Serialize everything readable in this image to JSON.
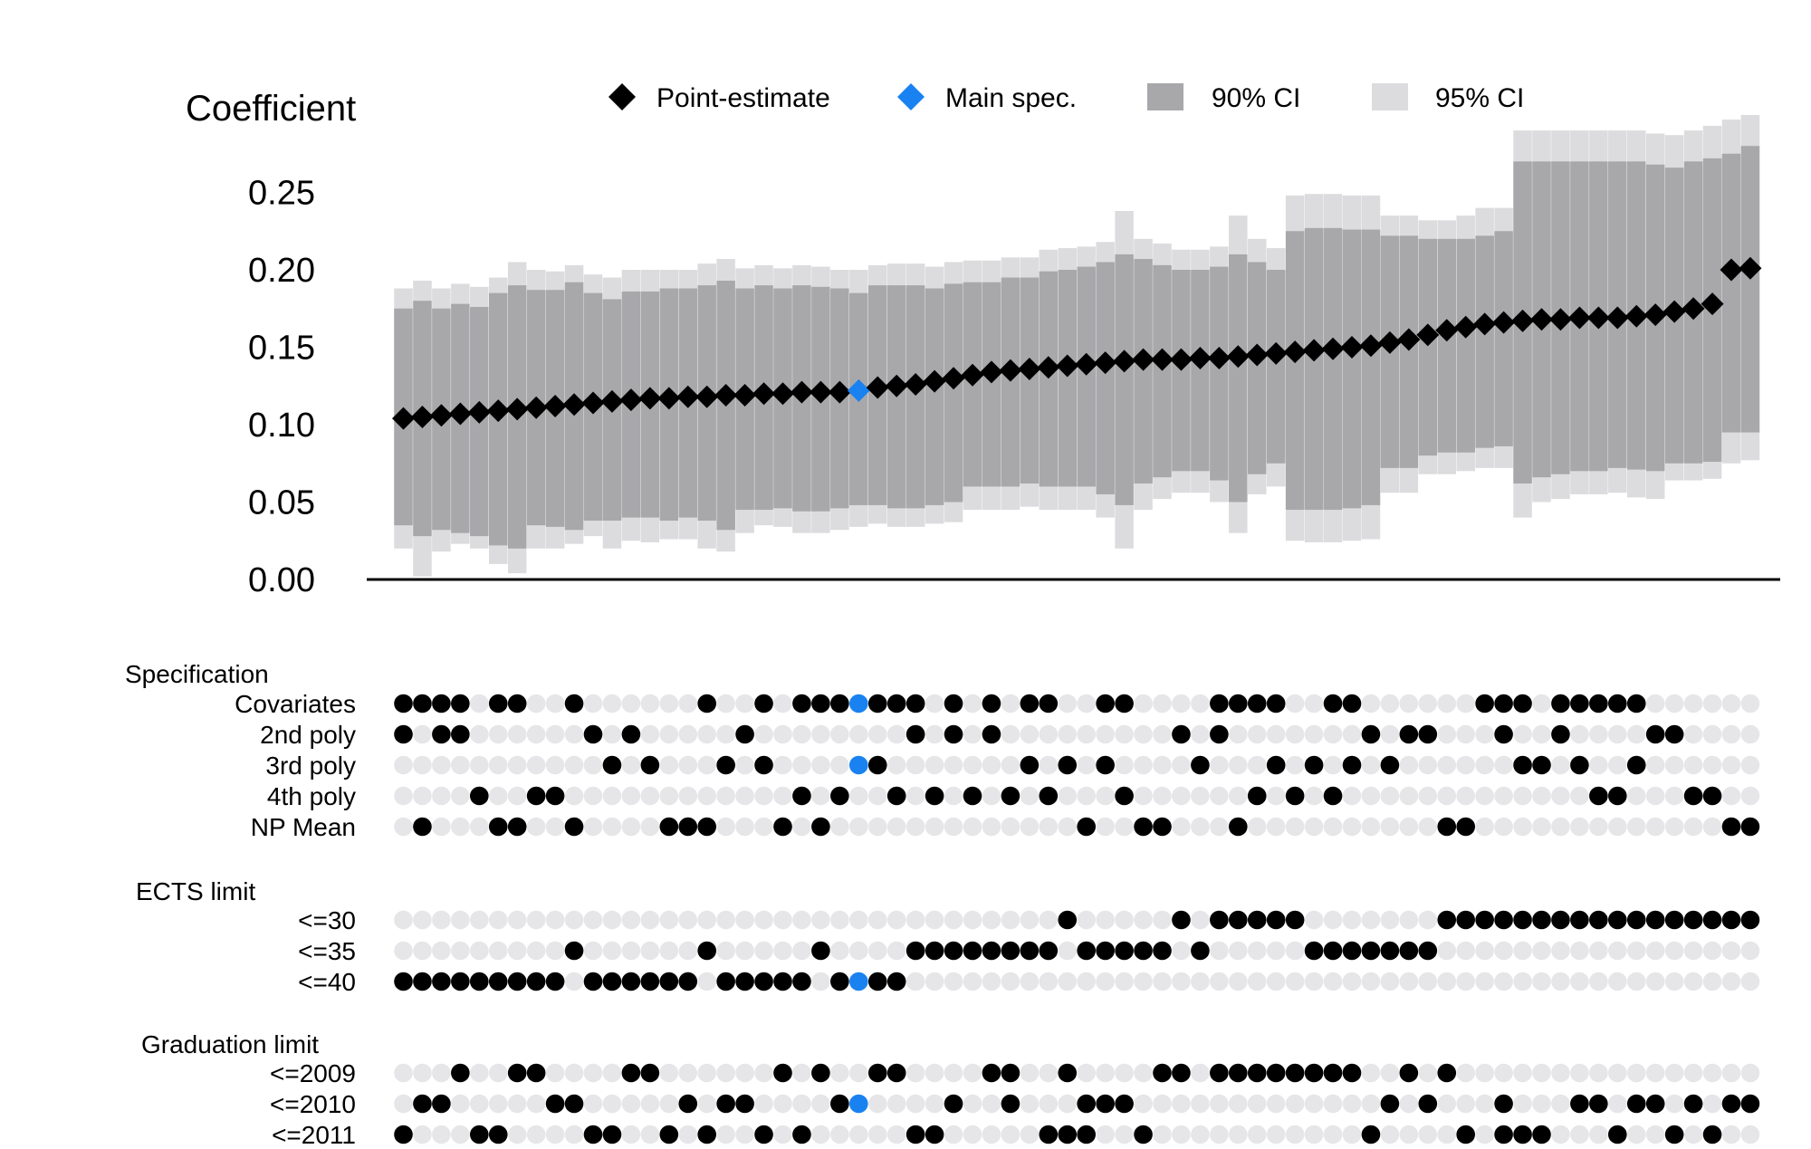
{
  "chart_data": {
    "type": "specification-curve",
    "ylabel": "Coefficient",
    "yticks": [
      "0.00",
      "0.05",
      "0.10",
      "0.15",
      "0.20",
      "0.25"
    ],
    "ylim": [
      0,
      0.28
    ],
    "legend": {
      "placement": "top",
      "items": [
        {
          "label": "Point-estimate",
          "shape": "diamond",
          "color": "#000000"
        },
        {
          "label": "Main spec.",
          "shape": "diamond",
          "color": "#1a82f0"
        },
        {
          "label": "90% CI",
          "shape": "square",
          "color": "#a8a8ab"
        },
        {
          "label": "95% CI",
          "shape": "square",
          "color": "#dcdcde"
        }
      ]
    },
    "main_spec_index": 24,
    "n_specs": 72,
    "estimates": [
      0.104,
      0.105,
      0.106,
      0.107,
      0.108,
      0.109,
      0.11,
      0.111,
      0.112,
      0.113,
      0.114,
      0.115,
      0.116,
      0.117,
      0.117,
      0.118,
      0.118,
      0.119,
      0.119,
      0.12,
      0.12,
      0.121,
      0.121,
      0.121,
      0.122,
      0.124,
      0.125,
      0.126,
      0.128,
      0.13,
      0.132,
      0.134,
      0.135,
      0.136,
      0.137,
      0.138,
      0.139,
      0.14,
      0.141,
      0.142,
      0.142,
      0.142,
      0.143,
      0.143,
      0.144,
      0.145,
      0.146,
      0.147,
      0.148,
      0.149,
      0.15,
      0.151,
      0.153,
      0.155,
      0.158,
      0.161,
      0.163,
      0.165,
      0.166,
      0.167,
      0.168,
      0.168,
      0.169,
      0.169,
      0.169,
      0.17,
      0.171,
      0.173,
      0.175,
      0.178,
      0.2,
      0.201
    ],
    "ci90": [
      [
        0.035,
        0.175
      ],
      [
        0.028,
        0.18
      ],
      [
        0.032,
        0.175
      ],
      [
        0.03,
        0.178
      ],
      [
        0.028,
        0.176
      ],
      [
        0.022,
        0.185
      ],
      [
        0.02,
        0.19
      ],
      [
        0.035,
        0.187
      ],
      [
        0.034,
        0.187
      ],
      [
        0.032,
        0.192
      ],
      [
        0.038,
        0.185
      ],
      [
        0.038,
        0.181
      ],
      [
        0.04,
        0.186
      ],
      [
        0.04,
        0.186
      ],
      [
        0.038,
        0.188
      ],
      [
        0.04,
        0.188
      ],
      [
        0.038,
        0.19
      ],
      [
        0.032,
        0.193
      ],
      [
        0.045,
        0.188
      ],
      [
        0.045,
        0.19
      ],
      [
        0.046,
        0.188
      ],
      [
        0.044,
        0.19
      ],
      [
        0.044,
        0.189
      ],
      [
        0.046,
        0.188
      ],
      [
        0.048,
        0.185
      ],
      [
        0.048,
        0.19
      ],
      [
        0.046,
        0.19
      ],
      [
        0.046,
        0.19
      ],
      [
        0.048,
        0.188
      ],
      [
        0.05,
        0.191
      ],
      [
        0.06,
        0.192
      ],
      [
        0.06,
        0.192
      ],
      [
        0.06,
        0.195
      ],
      [
        0.062,
        0.195
      ],
      [
        0.06,
        0.199
      ],
      [
        0.06,
        0.2
      ],
      [
        0.06,
        0.202
      ],
      [
        0.055,
        0.205
      ],
      [
        0.048,
        0.21
      ],
      [
        0.062,
        0.207
      ],
      [
        0.066,
        0.203
      ],
      [
        0.07,
        0.2
      ],
      [
        0.07,
        0.2
      ],
      [
        0.064,
        0.202
      ],
      [
        0.05,
        0.21
      ],
      [
        0.068,
        0.205
      ],
      [
        0.075,
        0.2
      ],
      [
        0.045,
        0.225
      ],
      [
        0.045,
        0.227
      ],
      [
        0.045,
        0.227
      ],
      [
        0.046,
        0.226
      ],
      [
        0.048,
        0.226
      ],
      [
        0.072,
        0.222
      ],
      [
        0.072,
        0.222
      ],
      [
        0.08,
        0.22
      ],
      [
        0.082,
        0.22
      ],
      [
        0.082,
        0.22
      ],
      [
        0.085,
        0.222
      ],
      [
        0.086,
        0.225
      ],
      [
        0.062,
        0.27
      ],
      [
        0.066,
        0.27
      ],
      [
        0.068,
        0.27
      ],
      [
        0.07,
        0.27
      ],
      [
        0.07,
        0.27
      ],
      [
        0.072,
        0.27
      ],
      [
        0.071,
        0.27
      ],
      [
        0.07,
        0.268
      ],
      [
        0.075,
        0.266
      ],
      [
        0.075,
        0.27
      ],
      [
        0.076,
        0.272
      ],
      [
        0.095,
        0.275
      ],
      [
        0.095,
        0.28
      ]
    ],
    "ci95": [
      [
        0.02,
        0.188
      ],
      [
        0.002,
        0.193
      ],
      [
        0.018,
        0.188
      ],
      [
        0.023,
        0.191
      ],
      [
        0.02,
        0.189
      ],
      [
        0.01,
        0.195
      ],
      [
        0.004,
        0.205
      ],
      [
        0.02,
        0.2
      ],
      [
        0.02,
        0.199
      ],
      [
        0.023,
        0.203
      ],
      [
        0.028,
        0.197
      ],
      [
        0.02,
        0.195
      ],
      [
        0.025,
        0.2
      ],
      [
        0.024,
        0.2
      ],
      [
        0.026,
        0.2
      ],
      [
        0.026,
        0.2
      ],
      [
        0.02,
        0.204
      ],
      [
        0.018,
        0.207
      ],
      [
        0.03,
        0.201
      ],
      [
        0.035,
        0.203
      ],
      [
        0.034,
        0.201
      ],
      [
        0.03,
        0.203
      ],
      [
        0.03,
        0.202
      ],
      [
        0.032,
        0.2
      ],
      [
        0.034,
        0.2
      ],
      [
        0.036,
        0.203
      ],
      [
        0.034,
        0.204
      ],
      [
        0.034,
        0.204
      ],
      [
        0.036,
        0.202
      ],
      [
        0.037,
        0.205
      ],
      [
        0.045,
        0.206
      ],
      [
        0.045,
        0.206
      ],
      [
        0.045,
        0.208
      ],
      [
        0.047,
        0.208
      ],
      [
        0.045,
        0.213
      ],
      [
        0.045,
        0.214
      ],
      [
        0.045,
        0.215
      ],
      [
        0.04,
        0.218
      ],
      [
        0.02,
        0.238
      ],
      [
        0.045,
        0.22
      ],
      [
        0.052,
        0.217
      ],
      [
        0.056,
        0.213
      ],
      [
        0.056,
        0.213
      ],
      [
        0.05,
        0.215
      ],
      [
        0.03,
        0.235
      ],
      [
        0.055,
        0.22
      ],
      [
        0.06,
        0.214
      ],
      [
        0.025,
        0.248
      ],
      [
        0.024,
        0.249
      ],
      [
        0.024,
        0.249
      ],
      [
        0.025,
        0.248
      ],
      [
        0.026,
        0.248
      ],
      [
        0.056,
        0.235
      ],
      [
        0.056,
        0.235
      ],
      [
        0.068,
        0.232
      ],
      [
        0.068,
        0.232
      ],
      [
        0.07,
        0.235
      ],
      [
        0.072,
        0.24
      ],
      [
        0.072,
        0.24
      ],
      [
        0.04,
        0.29
      ],
      [
        0.05,
        0.29
      ],
      [
        0.052,
        0.29
      ],
      [
        0.055,
        0.29
      ],
      [
        0.055,
        0.29
      ],
      [
        0.056,
        0.29
      ],
      [
        0.053,
        0.29
      ],
      [
        0.052,
        0.288
      ],
      [
        0.064,
        0.287
      ],
      [
        0.064,
        0.29
      ],
      [
        0.065,
        0.293
      ],
      [
        0.075,
        0.297
      ],
      [
        0.077,
        0.3
      ]
    ],
    "indicator_groups": [
      {
        "label": "Specification",
        "rows": [
          {
            "label": "Covariates",
            "active": [
              0,
              1,
              2,
              3,
              5,
              6,
              9,
              16,
              19,
              21,
              22,
              23,
              24,
              25,
              26,
              27,
              29,
              31,
              33,
              34,
              37,
              38,
              43,
              44,
              45,
              46,
              49,
              50,
              57,
              58,
              59,
              61,
              62,
              63,
              64,
              65
            ]
          },
          {
            "label": "2nd poly",
            "active": [
              0,
              2,
              3,
              10,
              12,
              18,
              27,
              29,
              31,
              41,
              43,
              51,
              53,
              54,
              58,
              61,
              66,
              67
            ]
          },
          {
            "label": "3rd poly",
            "active": [
              11,
              13,
              17,
              19,
              24,
              25,
              33,
              35,
              37,
              42,
              46,
              48,
              50,
              52,
              59,
              60,
              62,
              65
            ]
          },
          {
            "label": "4th poly",
            "active": [
              4,
              7,
              8,
              21,
              23,
              26,
              28,
              30,
              32,
              34,
              38,
              45,
              47,
              49,
              63,
              64,
              68,
              69
            ]
          },
          {
            "label": "NP Mean",
            "active": [
              1,
              5,
              6,
              9,
              14,
              15,
              16,
              20,
              22,
              36,
              39,
              40,
              44,
              55,
              56,
              70,
              71
            ]
          }
        ]
      },
      {
        "label": "ECTS limit",
        "rows": [
          {
            "label": "<=30",
            "active": [
              35,
              41,
              43,
              44,
              45,
              46,
              47,
              55,
              56,
              57,
              58,
              59,
              60,
              61,
              62,
              63,
              64,
              65,
              66,
              67,
              68,
              69,
              70,
              71
            ]
          },
          {
            "label": "<=35",
            "active": [
              9,
              16,
              22,
              27,
              28,
              29,
              30,
              31,
              32,
              33,
              34,
              36,
              37,
              38,
              39,
              40,
              42,
              48,
              49,
              50,
              51,
              52,
              53,
              54
            ]
          },
          {
            "label": "<=40",
            "active": [
              0,
              1,
              2,
              3,
              4,
              5,
              6,
              7,
              8,
              10,
              11,
              12,
              13,
              14,
              15,
              17,
              18,
              19,
              20,
              21,
              23,
              24,
              25,
              26
            ]
          }
        ]
      },
      {
        "label": "Graduation limit",
        "rows": [
          {
            "label": "<=2009",
            "active": [
              3,
              6,
              7,
              12,
              13,
              20,
              22,
              25,
              26,
              31,
              32,
              35,
              40,
              41,
              43,
              44,
              45,
              46,
              47,
              48,
              49,
              50,
              53,
              55
            ]
          },
          {
            "label": "<=2010",
            "active": [
              1,
              2,
              8,
              9,
              15,
              17,
              18,
              23,
              24,
              29,
              32,
              36,
              37,
              38,
              52,
              54,
              58,
              62,
              63,
              65,
              66,
              68,
              70,
              71
            ]
          },
          {
            "label": "<=2011",
            "active": [
              0,
              4,
              5,
              10,
              11,
              14,
              16,
              19,
              21,
              27,
              28,
              34,
              35,
              36,
              39,
              51,
              56,
              58,
              59,
              60,
              64,
              67,
              69
            ]
          }
        ]
      }
    ]
  },
  "colors": {
    "point": "#000000",
    "main": "#1a82f0",
    "ci90": "#a8a8ab",
    "ci95": "#dcdcde",
    "dot_off": "#e6e5e8",
    "axis": "#000000"
  }
}
